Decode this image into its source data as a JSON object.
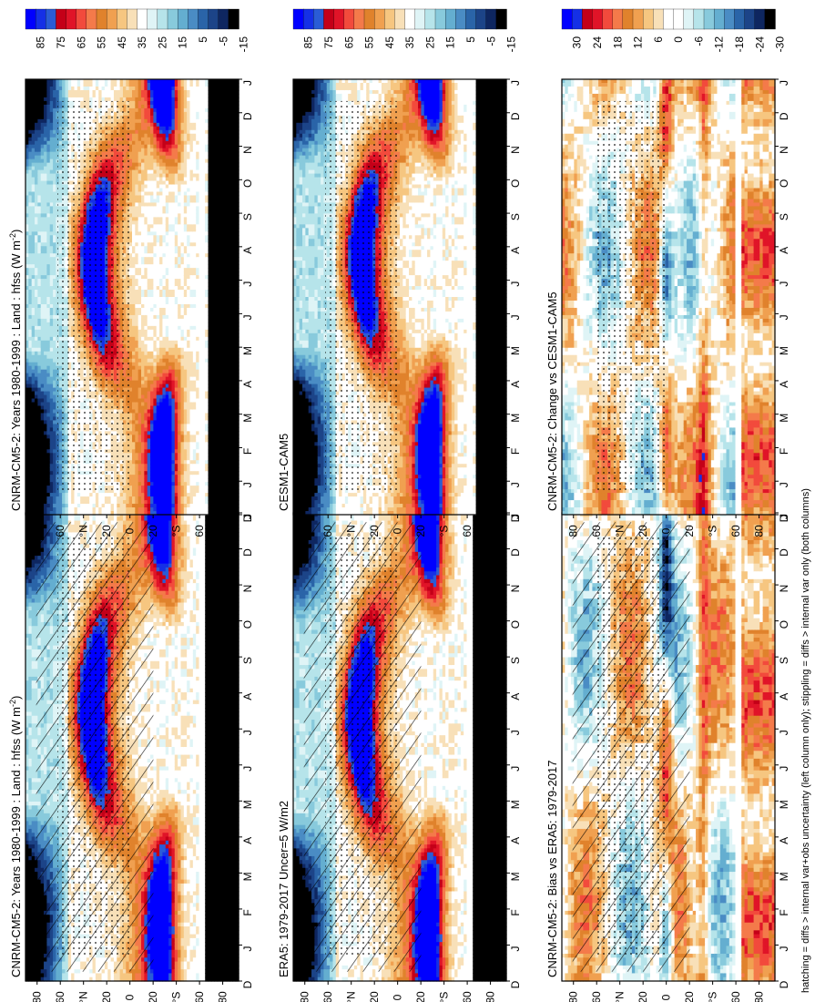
{
  "footer": "hatching = diffs > internal var+obs uncertainty (left column only); stippling = diffs > internal var only (both columns)",
  "chart_data": [
    {
      "type": "heatmap",
      "id": "p1",
      "title": "CNRM-CM5-2: Years 1980-1999 : Land : hfss (W m",
      "title_sup": "-2",
      "title_end": ")",
      "kind": "clim",
      "hatch": true,
      "stipple": true,
      "x_labels": [
        "D",
        "J",
        "F",
        "M",
        "A",
        "M",
        "J",
        "J",
        "A",
        "S",
        "O",
        "N",
        "D",
        "J"
      ],
      "y_labels": [
        "80",
        "60",
        "°N",
        "20",
        "0",
        "20",
        "°S",
        "60",
        "80"
      ],
      "ylim": [
        -90,
        90
      ],
      "colorbar_labels": [
        "85",
        "75",
        "65",
        "55",
        "45",
        "35",
        "25",
        "15",
        "5",
        "-5",
        "-15"
      ],
      "colors": [
        "#0000ff",
        "#1530e6",
        "#2a5cd6",
        "#c40018",
        "#e01428",
        "#f24a3c",
        "#f47a4a",
        "#e0822c",
        "#f0a050",
        "#f6c680",
        "#f8e0b8",
        "#ffffff",
        "#dff4f6",
        "#b6e4ea",
        "#88cadc",
        "#64aed0",
        "#4a8cc4",
        "#2a64a8",
        "#1c4488",
        "#0e2660",
        "#000000"
      ]
    },
    {
      "type": "heatmap",
      "id": "p2",
      "title": "CNRM-CM5-2: Years 1980-1999 : Land : hfss (W m",
      "title_sup": "-2",
      "title_end": ")",
      "kind": "clim",
      "hatch": false,
      "stipple": true,
      "x_labels": [
        "D",
        "J",
        "F",
        "M",
        "A",
        "M",
        "J",
        "J",
        "A",
        "S",
        "O",
        "N",
        "D",
        "J"
      ],
      "y_labels": [
        "80",
        "60",
        "°N",
        "20",
        "0",
        "20",
        "°S",
        "60",
        "80"
      ],
      "ylim": [
        -90,
        90
      ],
      "colorbar_labels": [
        "85",
        "75",
        "65",
        "55",
        "45",
        "35",
        "25",
        "15",
        "5",
        "-5",
        "-15"
      ]
    },
    {
      "type": "heatmap",
      "id": "p3",
      "title": "ERA5: 1979-2017 Uncer=5 W/m2",
      "kind": "clim",
      "hatch": true,
      "stipple": true,
      "x_labels": [
        "D",
        "J",
        "F",
        "M",
        "A",
        "M",
        "J",
        "J",
        "A",
        "S",
        "O",
        "N",
        "D",
        "J"
      ],
      "y_labels": [
        "80",
        "60",
        "°N",
        "20",
        "0",
        "20",
        "°S",
        "60",
        "80"
      ],
      "ylim": [
        -90,
        90
      ],
      "colorbar_labels": [
        "85",
        "75",
        "65",
        "55",
        "45",
        "35",
        "25",
        "15",
        "5",
        "-5",
        "-15"
      ]
    },
    {
      "type": "heatmap",
      "id": "p4",
      "title": "CESM1-CAM5",
      "kind": "clim",
      "hatch": false,
      "stipple": true,
      "x_labels": [
        "D",
        "J",
        "F",
        "M",
        "A",
        "M",
        "J",
        "J",
        "A",
        "S",
        "O",
        "N",
        "D",
        "J"
      ],
      "y_labels": [
        "80",
        "60",
        "°N",
        "20",
        "0",
        "20",
        "°S",
        "60",
        "80"
      ],
      "ylim": [
        -90,
        90
      ],
      "colorbar_labels": [
        "85",
        "75",
        "65",
        "55",
        "45",
        "35",
        "25",
        "15",
        "5",
        "-5",
        "-15"
      ]
    },
    {
      "type": "heatmap",
      "id": "p5",
      "title": "CNRM-CM5-2: Bias vs ERA5: 1979-2017",
      "kind": "diff",
      "hatch": true,
      "stipple": true,
      "x_labels": [
        "D",
        "J",
        "F",
        "M",
        "A",
        "M",
        "J",
        "J",
        "A",
        "S",
        "O",
        "N",
        "D",
        "J"
      ],
      "y_labels": [
        "80",
        "60",
        "°N",
        "20",
        "0",
        "20",
        "°S",
        "60",
        "80"
      ],
      "ylim": [
        -90,
        90
      ],
      "colorbar_labels": [
        "30",
        "24",
        "18",
        "12",
        "6",
        "0",
        "-6",
        "-12",
        "-18",
        "-24",
        "-30"
      ]
    },
    {
      "type": "heatmap",
      "id": "p6",
      "title": "CNRM-CM5-2: Change vs CESM1-CAM5",
      "kind": "diff",
      "hatch": false,
      "stipple": true,
      "x_labels": [
        "D",
        "J",
        "F",
        "M",
        "A",
        "M",
        "J",
        "J",
        "A",
        "S",
        "O",
        "N",
        "D",
        "J"
      ],
      "y_labels": [
        "80",
        "60",
        "°N",
        "20",
        "0",
        "20",
        "°S",
        "60",
        "80"
      ],
      "ylim": [
        -90,
        90
      ],
      "colorbar_labels": [
        "30",
        "24",
        "18",
        "12",
        "6",
        "0",
        "-6",
        "-12",
        "-18",
        "-24",
        "-30"
      ]
    }
  ]
}
